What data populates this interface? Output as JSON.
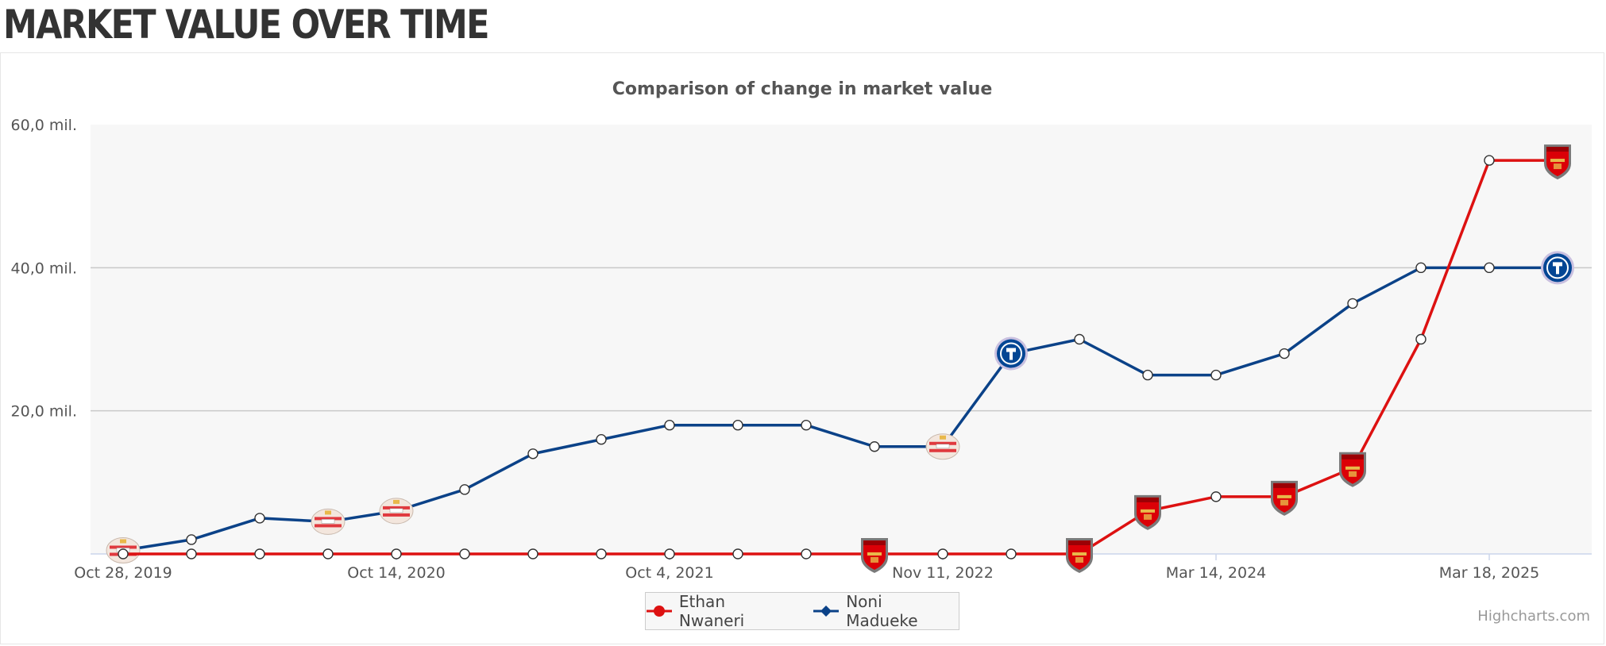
{
  "page": {
    "heading": "MARKET VALUE OVER TIME"
  },
  "chart_data": {
    "type": "line",
    "title": "Comparison of change in market value",
    "xlabel": "",
    "ylabel": "",
    "ylim": [
      0,
      60
    ],
    "y_ticks": [
      {
        "value": 20,
        "label": "20,0 mil."
      },
      {
        "value": 40,
        "label": "40,0 mil."
      },
      {
        "value": 60,
        "label": "60,0 mil."
      }
    ],
    "x_tick_labels": [
      {
        "index": 0,
        "label": "Oct 28, 2019"
      },
      {
        "index": 4,
        "label": "Oct 14, 2020"
      },
      {
        "index": 8,
        "label": "Oct 4, 2021"
      },
      {
        "index": 12,
        "label": "Nov 11, 2022"
      },
      {
        "index": 16,
        "label": "Mar 14, 2024"
      },
      {
        "index": 20,
        "label": "Mar 18, 2025"
      }
    ],
    "series": [
      {
        "name": "Ethan Nwaneri",
        "color": "#dd1111",
        "marker": "circle",
        "values": [
          0,
          0,
          0,
          0,
          0,
          0,
          0,
          0,
          0,
          0,
          0,
          0,
          0,
          0,
          0,
          6,
          8,
          8,
          12,
          30,
          55,
          55
        ],
        "club_icons": [
          {
            "index": 11,
            "icon": "arsenal-crest-icon"
          },
          {
            "index": 14,
            "icon": "arsenal-crest-icon"
          },
          {
            "index": 15,
            "icon": "arsenal-crest-icon"
          },
          {
            "index": 17,
            "icon": "arsenal-crest-icon"
          },
          {
            "index": 18,
            "icon": "arsenal-crest-icon"
          },
          {
            "index": 21,
            "icon": "arsenal-crest-icon"
          }
        ]
      },
      {
        "name": "Noni Madueke",
        "color": "#0b4288",
        "marker": "diamond",
        "values": [
          0.5,
          2,
          5,
          4.5,
          6,
          9,
          14,
          16,
          18,
          18,
          18,
          15,
          15,
          28,
          30,
          25,
          25,
          28,
          35,
          40,
          40,
          40
        ],
        "club_icons": [
          {
            "index": 0,
            "icon": "psv-crest-icon"
          },
          {
            "index": 3,
            "icon": "psv-crest-icon"
          },
          {
            "index": 4,
            "icon": "psv-crest-icon"
          },
          {
            "index": 12,
            "icon": "psv-crest-icon"
          },
          {
            "index": 13,
            "icon": "chelsea-crest-icon"
          },
          {
            "index": 21,
            "icon": "chelsea-crest-icon"
          }
        ]
      }
    ],
    "grid": true,
    "legend_position": "bottom-center",
    "plot_background": "#f7f7f7",
    "grid_color": "#c8c8c8"
  },
  "credits": "Highcharts.com"
}
